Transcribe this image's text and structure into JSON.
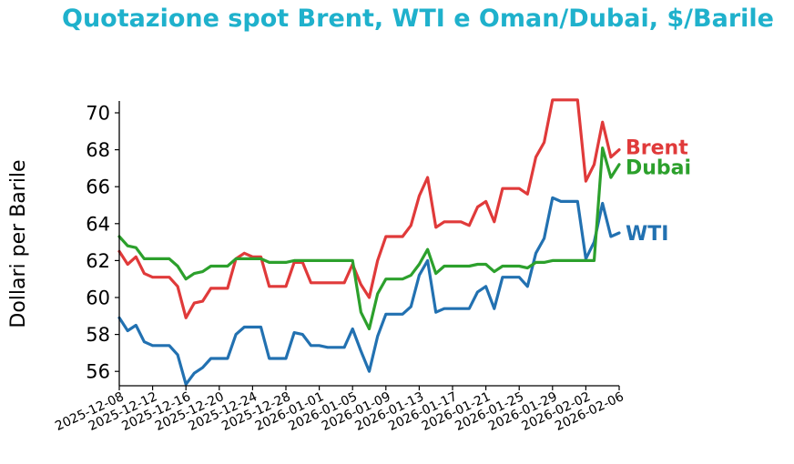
{
  "chart_data": {
    "type": "line",
    "title": "Quotazione spot Brent, WTI e Oman/Dubai, $/Barile",
    "ylabel": "Dollari per Barile",
    "xlabel": "",
    "ylim": [
      55.3,
      70.6
    ],
    "yticks": [
      56,
      58,
      60,
      62,
      64,
      66,
      68,
      70
    ],
    "xlim": [
      "2025-12-08",
      "2026-02-06"
    ],
    "xticks": [
      "2025-12-08",
      "2025-12-12",
      "2025-12-16",
      "2025-12-20",
      "2025-12-24",
      "2025-12-28",
      "2026-01-01",
      "2026-01-05",
      "2026-01-09",
      "2026-01-13",
      "2026-01-17",
      "2026-01-21",
      "2026-01-25",
      "2026-01-29",
      "2026-02-02",
      "2026-02-06"
    ],
    "grid": false,
    "legend": "end-of-line labels",
    "series": [
      {
        "name": "Brent",
        "color": "#e03a3a",
        "points": [
          [
            "2025-12-08",
            62.5
          ],
          [
            "2025-12-09",
            61.8
          ],
          [
            "2025-12-10",
            62.2
          ],
          [
            "2025-12-11",
            61.3
          ],
          [
            "2025-12-12",
            61.1
          ],
          [
            "2025-12-13",
            61.1
          ],
          [
            "2025-12-14",
            61.1
          ],
          [
            "2025-12-15",
            60.6
          ],
          [
            "2025-12-16",
            58.9
          ],
          [
            "2025-12-17",
            59.7
          ],
          [
            "2025-12-18",
            59.8
          ],
          [
            "2025-12-19",
            60.5
          ],
          [
            "2025-12-20",
            60.5
          ],
          [
            "2025-12-21",
            60.5
          ],
          [
            "2025-12-22",
            62.1
          ],
          [
            "2025-12-23",
            62.4
          ],
          [
            "2025-12-24",
            62.2
          ],
          [
            "2025-12-25",
            62.2
          ],
          [
            "2025-12-26",
            60.6
          ],
          [
            "2025-12-27",
            60.6
          ],
          [
            "2025-12-28",
            60.6
          ],
          [
            "2025-12-29",
            61.9
          ],
          [
            "2025-12-30",
            61.9
          ],
          [
            "2025-12-31",
            60.8
          ],
          [
            "2026-01-01",
            60.8
          ],
          [
            "2026-01-02",
            60.8
          ],
          [
            "2026-01-03",
            60.8
          ],
          [
            "2026-01-04",
            60.8
          ],
          [
            "2026-01-05",
            61.8
          ],
          [
            "2026-01-06",
            60.7
          ],
          [
            "2026-01-07",
            60.0
          ],
          [
            "2026-01-08",
            62.0
          ],
          [
            "2026-01-09",
            63.3
          ],
          [
            "2026-01-10",
            63.3
          ],
          [
            "2026-01-11",
            63.3
          ],
          [
            "2026-01-12",
            63.9
          ],
          [
            "2026-01-13",
            65.5
          ],
          [
            "2026-01-14",
            66.5
          ],
          [
            "2026-01-15",
            63.8
          ],
          [
            "2026-01-16",
            64.1
          ],
          [
            "2026-01-17",
            64.1
          ],
          [
            "2026-01-18",
            64.1
          ],
          [
            "2026-01-19",
            63.9
          ],
          [
            "2026-01-20",
            64.9
          ],
          [
            "2026-01-21",
            65.2
          ],
          [
            "2026-01-22",
            64.1
          ],
          [
            "2026-01-23",
            65.9
          ],
          [
            "2026-01-24",
            65.9
          ],
          [
            "2026-01-25",
            65.9
          ],
          [
            "2026-01-26",
            65.6
          ],
          [
            "2026-01-27",
            67.6
          ],
          [
            "2026-01-28",
            68.4
          ],
          [
            "2026-01-29",
            70.7
          ],
          [
            "2026-01-30",
            70.7
          ],
          [
            "2026-01-31",
            70.7
          ],
          [
            "2026-02-01",
            70.7
          ],
          [
            "2026-02-02",
            66.3
          ],
          [
            "2026-02-03",
            67.2
          ],
          [
            "2026-02-04",
            69.5
          ],
          [
            "2026-02-05",
            67.6
          ],
          [
            "2026-02-06",
            68.0
          ]
        ]
      },
      {
        "name": "WTI",
        "color": "#2271b1",
        "points": [
          [
            "2025-12-08",
            58.9
          ],
          [
            "2025-12-09",
            58.2
          ],
          [
            "2025-12-10",
            58.5
          ],
          [
            "2025-12-11",
            57.6
          ],
          [
            "2025-12-12",
            57.4
          ],
          [
            "2025-12-13",
            57.4
          ],
          [
            "2025-12-14",
            57.4
          ],
          [
            "2025-12-15",
            56.9
          ],
          [
            "2025-12-16",
            55.3
          ],
          [
            "2025-12-17",
            55.9
          ],
          [
            "2025-12-18",
            56.2
          ],
          [
            "2025-12-19",
            56.7
          ],
          [
            "2025-12-20",
            56.7
          ],
          [
            "2025-12-21",
            56.7
          ],
          [
            "2025-12-22",
            58.0
          ],
          [
            "2025-12-23",
            58.4
          ],
          [
            "2025-12-24",
            58.4
          ],
          [
            "2025-12-25",
            58.4
          ],
          [
            "2025-12-26",
            56.7
          ],
          [
            "2025-12-27",
            56.7
          ],
          [
            "2025-12-28",
            56.7
          ],
          [
            "2025-12-29",
            58.1
          ],
          [
            "2025-12-30",
            58.0
          ],
          [
            "2025-12-31",
            57.4
          ],
          [
            "2026-01-01",
            57.4
          ],
          [
            "2026-01-02",
            57.3
          ],
          [
            "2026-01-03",
            57.3
          ],
          [
            "2026-01-04",
            57.3
          ],
          [
            "2026-01-05",
            58.3
          ],
          [
            "2026-01-06",
            57.1
          ],
          [
            "2026-01-07",
            56.0
          ],
          [
            "2026-01-08",
            57.9
          ],
          [
            "2026-01-09",
            59.1
          ],
          [
            "2026-01-10",
            59.1
          ],
          [
            "2026-01-11",
            59.1
          ],
          [
            "2026-01-12",
            59.5
          ],
          [
            "2026-01-13",
            61.2
          ],
          [
            "2026-01-14",
            62.0
          ],
          [
            "2026-01-15",
            59.2
          ],
          [
            "2026-01-16",
            59.4
          ],
          [
            "2026-01-17",
            59.4
          ],
          [
            "2026-01-18",
            59.4
          ],
          [
            "2026-01-19",
            59.4
          ],
          [
            "2026-01-20",
            60.3
          ],
          [
            "2026-01-21",
            60.6
          ],
          [
            "2026-01-22",
            59.4
          ],
          [
            "2026-01-23",
            61.1
          ],
          [
            "2026-01-24",
            61.1
          ],
          [
            "2026-01-25",
            61.1
          ],
          [
            "2026-01-26",
            60.6
          ],
          [
            "2026-01-27",
            62.4
          ],
          [
            "2026-01-28",
            63.2
          ],
          [
            "2026-01-29",
            65.4
          ],
          [
            "2026-01-30",
            65.2
          ],
          [
            "2026-01-31",
            65.2
          ],
          [
            "2026-02-01",
            65.2
          ],
          [
            "2026-02-02",
            62.1
          ],
          [
            "2026-02-03",
            63.0
          ],
          [
            "2026-02-04",
            65.1
          ],
          [
            "2026-02-05",
            63.3
          ],
          [
            "2026-02-06",
            63.5
          ]
        ]
      },
      {
        "name": "Dubai",
        "color": "#2ca02c",
        "points": [
          [
            "2025-12-08",
            63.3
          ],
          [
            "2025-12-09",
            62.8
          ],
          [
            "2025-12-10",
            62.7
          ],
          [
            "2025-12-11",
            62.1
          ],
          [
            "2025-12-12",
            62.1
          ],
          [
            "2025-12-13",
            62.1
          ],
          [
            "2025-12-14",
            62.1
          ],
          [
            "2025-12-15",
            61.7
          ],
          [
            "2025-12-16",
            61.0
          ],
          [
            "2025-12-17",
            61.3
          ],
          [
            "2025-12-18",
            61.4
          ],
          [
            "2025-12-19",
            61.7
          ],
          [
            "2025-12-20",
            61.7
          ],
          [
            "2025-12-21",
            61.7
          ],
          [
            "2025-12-22",
            62.1
          ],
          [
            "2025-12-23",
            62.1
          ],
          [
            "2025-12-24",
            62.1
          ],
          [
            "2025-12-25",
            62.1
          ],
          [
            "2025-12-26",
            61.9
          ],
          [
            "2025-12-27",
            61.9
          ],
          [
            "2025-12-28",
            61.9
          ],
          [
            "2025-12-29",
            62.0
          ],
          [
            "2025-12-30",
            62.0
          ],
          [
            "2025-12-31",
            62.0
          ],
          [
            "2026-01-01",
            62.0
          ],
          [
            "2026-01-02",
            62.0
          ],
          [
            "2026-01-03",
            62.0
          ],
          [
            "2026-01-04",
            62.0
          ],
          [
            "2026-01-05",
            62.0
          ],
          [
            "2026-01-06",
            59.2
          ],
          [
            "2026-01-07",
            58.3
          ],
          [
            "2026-01-08",
            60.2
          ],
          [
            "2026-01-09",
            61.0
          ],
          [
            "2026-01-10",
            61.0
          ],
          [
            "2026-01-11",
            61.0
          ],
          [
            "2026-01-12",
            61.2
          ],
          [
            "2026-01-13",
            61.8
          ],
          [
            "2026-01-14",
            62.6
          ],
          [
            "2026-01-15",
            61.3
          ],
          [
            "2026-01-16",
            61.7
          ],
          [
            "2026-01-17",
            61.7
          ],
          [
            "2026-01-18",
            61.7
          ],
          [
            "2026-01-19",
            61.7
          ],
          [
            "2026-01-20",
            61.8
          ],
          [
            "2026-01-21",
            61.8
          ],
          [
            "2026-01-22",
            61.4
          ],
          [
            "2026-01-23",
            61.7
          ],
          [
            "2026-01-24",
            61.7
          ],
          [
            "2026-01-25",
            61.7
          ],
          [
            "2026-01-26",
            61.6
          ],
          [
            "2026-01-27",
            61.9
          ],
          [
            "2026-01-28",
            61.9
          ],
          [
            "2026-01-29",
            62.0
          ],
          [
            "2026-01-30",
            62.0
          ],
          [
            "2026-01-31",
            62.0
          ],
          [
            "2026-02-01",
            62.0
          ],
          [
            "2026-02-02",
            62.0
          ],
          [
            "2026-02-03",
            62.0
          ],
          [
            "2026-02-04",
            68.1
          ],
          [
            "2026-02-05",
            66.5
          ],
          [
            "2026-02-06",
            67.2
          ]
        ]
      }
    ]
  }
}
